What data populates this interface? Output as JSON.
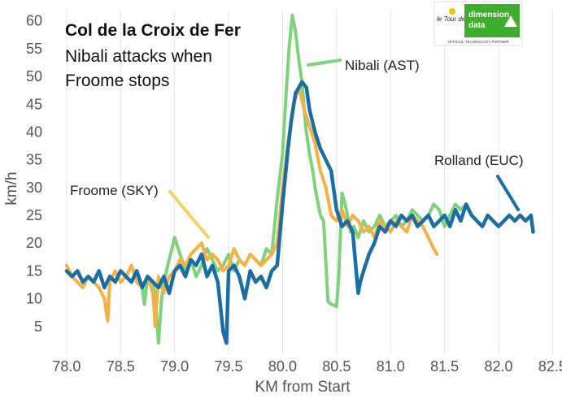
{
  "chart_data": {
    "type": "line",
    "title": "Col de la Croix de Fer",
    "subtitle_lines": [
      "Nibali attacks when",
      "Froome stops"
    ],
    "xlabel": "KM from Start",
    "ylabel": "km/h",
    "xlim": [
      77.85,
      82.55
    ],
    "ylim": [
      0,
      62
    ],
    "xticks": [
      78.0,
      78.5,
      79.0,
      79.5,
      80.0,
      80.5,
      81.0,
      81.5,
      82.0,
      82.5
    ],
    "xtick_labels": [
      "78.0",
      "78.5",
      "79.0",
      "79.5",
      "80.0",
      "80.5",
      "81.0",
      "81.5",
      "82.0",
      "82.5"
    ],
    "yticks": [
      5,
      10,
      15,
      20,
      25,
      30,
      35,
      40,
      45,
      50,
      55,
      60
    ],
    "ytick_labels": [
      "5",
      "10",
      "15",
      "20",
      "25",
      "30",
      "35",
      "40",
      "45",
      "50",
      "55",
      "60"
    ],
    "grid": "vertical",
    "series": [
      {
        "name": "Nibali (AST)",
        "color": "#7ed37a",
        "annotation": "Nibali (AST)",
        "x": [
          78.0,
          78.05,
          78.1,
          78.15,
          78.2,
          78.25,
          78.3,
          78.35,
          78.4,
          78.45,
          78.5,
          78.55,
          78.6,
          78.65,
          78.7,
          78.72,
          78.75,
          78.8,
          78.83,
          78.85,
          78.88,
          78.9,
          78.95,
          79.0,
          79.05,
          79.1,
          79.15,
          79.2,
          79.25,
          79.3,
          79.35,
          79.4,
          79.45,
          79.5,
          79.55,
          79.6,
          79.65,
          79.7,
          79.75,
          79.8,
          79.85,
          79.9,
          79.95,
          80.0,
          80.03,
          80.06,
          80.09,
          80.12,
          80.15,
          80.18,
          80.2,
          80.22,
          80.25,
          80.28,
          80.3,
          80.32,
          80.35,
          80.38,
          80.42,
          80.45,
          80.48,
          80.5,
          80.52,
          80.55,
          80.58,
          80.6,
          80.63,
          80.66,
          80.7,
          80.75,
          80.8,
          80.85,
          80.9,
          80.95,
          81.0,
          81.05,
          81.1,
          81.15,
          81.2,
          81.25,
          81.3,
          81.35,
          81.4,
          81.45,
          81.5,
          81.55,
          81.6,
          81.65,
          81.7
        ],
        "y": [
          15,
          14,
          15,
          13,
          14,
          13,
          15,
          12,
          14,
          13,
          15,
          14,
          13,
          15,
          12,
          9,
          14,
          13,
          8,
          2,
          10,
          13,
          17,
          21,
          18,
          15,
          17,
          14,
          16,
          19,
          17,
          15,
          16,
          18,
          15,
          17,
          16,
          18,
          17,
          16,
          19,
          18,
          28,
          36,
          46,
          55,
          61,
          58,
          53,
          49,
          44,
          40,
          36,
          33,
          30,
          28,
          25,
          24,
          9.5,
          9,
          8.8,
          8.6,
          14,
          29,
          27,
          25,
          22,
          23,
          21,
          24,
          22,
          23,
          25,
          23,
          24,
          25,
          23,
          24,
          26,
          25,
          24,
          25,
          27,
          26,
          23,
          25,
          27,
          26,
          27
        ]
      },
      {
        "name": "Froome (SKY)",
        "color": "#f5b043",
        "annotation": "Froome (SKY)",
        "x": [
          78.0,
          78.05,
          78.1,
          78.15,
          78.2,
          78.25,
          78.3,
          78.35,
          78.38,
          78.4,
          78.45,
          78.5,
          78.55,
          78.6,
          78.65,
          78.7,
          78.75,
          78.8,
          78.82,
          78.85,
          78.9,
          78.95,
          79.0,
          79.05,
          79.1,
          79.15,
          79.2,
          79.25,
          79.3,
          79.35,
          79.4,
          79.45,
          79.5,
          79.55,
          79.6,
          79.65,
          79.7,
          79.75,
          79.8,
          79.85,
          79.9,
          79.95,
          80.0,
          80.05,
          80.1,
          80.15,
          80.2,
          80.25,
          80.3,
          80.35,
          80.4,
          80.45,
          80.5,
          80.55,
          80.6,
          80.65,
          80.7,
          80.75,
          80.8,
          80.85,
          80.9,
          80.95,
          81.0,
          81.05,
          81.1,
          81.15,
          81.2,
          81.25,
          81.3,
          81.35,
          81.4,
          81.43
        ],
        "y": [
          16,
          14,
          13,
          12,
          14,
          13,
          12,
          10,
          6,
          13,
          15,
          13,
          14,
          16,
          13,
          12,
          14,
          11,
          5,
          14,
          11,
          14,
          15,
          17,
          16,
          18,
          19,
          20,
          17,
          18,
          17,
          15,
          16,
          19,
          17,
          16,
          18,
          17,
          16,
          17,
          18,
          20,
          30,
          38,
          45,
          48,
          44,
          41,
          38,
          33,
          30,
          25,
          24,
          26,
          23,
          25,
          24,
          22,
          23,
          21,
          24,
          23,
          22,
          24,
          23,
          22,
          25,
          24,
          23,
          21,
          19,
          18
        ]
      },
      {
        "name": "Rolland (EUC)",
        "color": "#1b6ea5",
        "annotation": "Rolland (EUC)",
        "x": [
          78.0,
          78.05,
          78.1,
          78.15,
          78.2,
          78.25,
          78.3,
          78.35,
          78.4,
          78.45,
          78.5,
          78.55,
          78.6,
          78.65,
          78.7,
          78.75,
          78.8,
          78.85,
          78.9,
          78.95,
          79.0,
          79.05,
          79.1,
          79.15,
          79.2,
          79.25,
          79.3,
          79.35,
          79.4,
          79.45,
          79.48,
          79.5,
          79.55,
          79.6,
          79.65,
          79.7,
          79.75,
          79.8,
          79.85,
          79.9,
          79.95,
          80.0,
          80.05,
          80.08,
          80.12,
          80.15,
          80.18,
          80.22,
          80.25,
          80.3,
          80.35,
          80.4,
          80.45,
          80.5,
          80.55,
          80.6,
          80.65,
          80.7,
          80.72,
          80.75,
          80.8,
          80.85,
          80.9,
          80.95,
          81.0,
          81.05,
          81.1,
          81.15,
          81.2,
          81.25,
          81.3,
          81.35,
          81.4,
          81.45,
          81.5,
          81.55,
          81.6,
          81.65,
          81.7,
          81.75,
          81.8,
          81.85,
          81.9,
          81.95,
          82.0,
          82.05,
          82.1,
          82.15,
          82.2,
          82.25,
          82.3,
          82.32
        ],
        "y": [
          15,
          14,
          15,
          13,
          14,
          13,
          15,
          12,
          14,
          13,
          15,
          14,
          13,
          15,
          12,
          14,
          13,
          12,
          14,
          11,
          15,
          16,
          14,
          17,
          16,
          18,
          14,
          16,
          13,
          4,
          2,
          15,
          16,
          14,
          10,
          15,
          13,
          14,
          12,
          15,
          16,
          27,
          37,
          42,
          47,
          48,
          49,
          48,
          44,
          40,
          37,
          35,
          33,
          26,
          23,
          24,
          22,
          11,
          13,
          15,
          18,
          20,
          23,
          22,
          24,
          23,
          25,
          24,
          25,
          23,
          24,
          25,
          23,
          24,
          25,
          23,
          26,
          24,
          27,
          25,
          24,
          23,
          25,
          24,
          23,
          24,
          25,
          24,
          25,
          24,
          25,
          22
        ]
      }
    ]
  },
  "logo": {
    "race_text": "le Tour de France",
    "brand_text_1": "dimension",
    "brand_text_2": "data",
    "partner_text": "OFFICIAL TECHNOLOGY PARTNER",
    "brand_color": "#3dae2b"
  }
}
